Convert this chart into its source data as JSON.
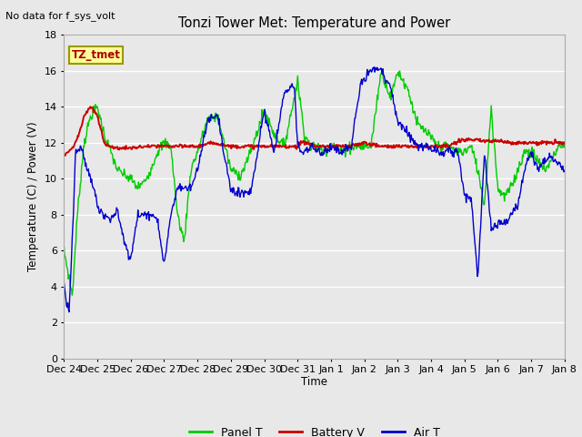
{
  "title": "Tonzi Tower Met: Temperature and Power",
  "note": "No data for f_sys_volt",
  "ylabel": "Temperature (C) / Power (V)",
  "xlabel": "Time",
  "ylim": [
    0,
    18
  ],
  "yticks": [
    0,
    2,
    4,
    6,
    8,
    10,
    12,
    14,
    16,
    18
  ],
  "xtick_labels": [
    "Dec 24",
    "Dec 25",
    "Dec 26",
    "Dec 27",
    "Dec 28",
    "Dec 29",
    "Dec 30",
    "Dec 31",
    "Jan 1",
    "Jan 2",
    "Jan 3",
    "Jan 4",
    "Jan 5",
    "Jan 6",
    "Jan 7",
    "Jan 8"
  ],
  "legend_entries": [
    "Panel T",
    "Battery V",
    "Air T"
  ],
  "legend_colors": [
    "#00cc00",
    "#cc0000",
    "#0000cc"
  ],
  "tag_label": "TZ_tmet",
  "tag_bg": "#ffff99",
  "tag_border": "#999900",
  "fig_bg": "#e8e8e8",
  "plot_bg": "#e8e8e8",
  "grid_color": "#ffffff",
  "panel_t_xknots": [
    0,
    0.1,
    0.25,
    0.4,
    0.6,
    0.8,
    1.0,
    1.2,
    1.4,
    1.6,
    1.8,
    2.0,
    2.2,
    2.4,
    2.6,
    2.8,
    3.0,
    3.2,
    3.4,
    3.6,
    3.8,
    4.0,
    4.3,
    4.6,
    5.0,
    5.3,
    5.6,
    6.0,
    6.3,
    6.6,
    6.9,
    7.0,
    7.2,
    7.4,
    7.6,
    7.8,
    8.0,
    8.3,
    8.6,
    8.9,
    9.2,
    9.5,
    9.8,
    10.0,
    10.3,
    10.6,
    10.9,
    11.2,
    11.5,
    11.8,
    12.0,
    12.2,
    12.4,
    12.6,
    12.8,
    13.0,
    13.2,
    13.4,
    13.6,
    13.8,
    14.0,
    14.2,
    14.4,
    14.6,
    14.8,
    15.0
  ],
  "panel_t_yknots": [
    6.0,
    5.0,
    3.5,
    8.0,
    12.0,
    13.5,
    14.0,
    12.5,
    11.5,
    10.5,
    10.2,
    10.0,
    9.5,
    9.8,
    10.5,
    11.5,
    12.0,
    11.8,
    8.0,
    6.5,
    10.5,
    11.5,
    13.3,
    13.5,
    10.5,
    10.2,
    11.5,
    13.8,
    12.5,
    11.8,
    14.5,
    15.5,
    12.5,
    11.8,
    11.8,
    11.5,
    12.0,
    11.5,
    11.8,
    11.8,
    11.8,
    16.0,
    14.5,
    16.0,
    15.0,
    13.0,
    12.5,
    11.8,
    11.8,
    11.5,
    11.5,
    11.8,
    10.5,
    8.5,
    14.0,
    9.5,
    9.0,
    9.5,
    10.5,
    11.5,
    11.5,
    11.0,
    10.5,
    11.0,
    11.8,
    11.8
  ],
  "batt_v_xknots": [
    0,
    0.3,
    0.5,
    0.6,
    0.8,
    1.0,
    1.2,
    1.5,
    2.0,
    2.5,
    3.0,
    3.5,
    4.0,
    4.5,
    5.0,
    5.5,
    6.0,
    6.5,
    7.0,
    7.1,
    7.3,
    7.5,
    8.0,
    8.5,
    9.0,
    9.5,
    10.0,
    10.5,
    11.0,
    11.5,
    12.0,
    12.5,
    13.0,
    13.5,
    14.0,
    14.5,
    15.0
  ],
  "batt_v_yknots": [
    11.3,
    11.8,
    12.8,
    13.5,
    14.0,
    13.5,
    12.0,
    11.7,
    11.7,
    11.8,
    11.8,
    11.8,
    11.8,
    12.0,
    11.8,
    11.8,
    11.8,
    11.8,
    11.8,
    12.0,
    12.0,
    11.8,
    11.8,
    11.8,
    12.0,
    11.8,
    11.8,
    11.8,
    11.8,
    11.8,
    12.2,
    12.1,
    12.1,
    12.0,
    12.0,
    12.0,
    12.0
  ],
  "air_t_xknots": [
    0,
    0.07,
    0.15,
    0.2,
    0.35,
    0.5,
    0.7,
    0.9,
    1.0,
    1.2,
    1.4,
    1.6,
    1.8,
    2.0,
    2.2,
    2.4,
    2.6,
    2.8,
    3.0,
    3.2,
    3.4,
    3.6,
    3.8,
    4.0,
    4.3,
    4.6,
    5.0,
    5.3,
    5.6,
    6.0,
    6.3,
    6.6,
    6.9,
    7.0,
    7.2,
    7.4,
    7.6,
    7.8,
    8.0,
    8.3,
    8.6,
    8.9,
    9.2,
    9.5,
    9.8,
    10.0,
    10.3,
    10.6,
    10.9,
    11.2,
    11.5,
    11.8,
    12.0,
    12.2,
    12.4,
    12.6,
    12.8,
    13.0,
    13.2,
    13.4,
    13.6,
    13.8,
    14.0,
    14.2,
    14.4,
    14.6,
    14.8,
    15.0
  ],
  "air_t_yknots": [
    4.2,
    3.0,
    2.5,
    4.5,
    11.5,
    11.8,
    10.5,
    9.5,
    8.5,
    8.0,
    7.7,
    8.2,
    6.5,
    5.5,
    8.0,
    8.0,
    8.0,
    7.8,
    5.2,
    8.0,
    9.5,
    9.5,
    9.5,
    10.5,
    13.3,
    13.5,
    9.3,
    9.2,
    9.3,
    13.8,
    11.5,
    14.8,
    15.2,
    11.8,
    11.5,
    11.8,
    11.5,
    11.5,
    11.8,
    11.5,
    11.8,
    15.3,
    16.1,
    16.0,
    15.0,
    13.2,
    12.5,
    11.8,
    11.8,
    11.5,
    11.5,
    11.5,
    9.0,
    8.9,
    4.5,
    11.5,
    7.2,
    7.5,
    7.5,
    8.0,
    8.5,
    10.5,
    11.5,
    10.5,
    11.0,
    11.2,
    10.8,
    10.5
  ]
}
